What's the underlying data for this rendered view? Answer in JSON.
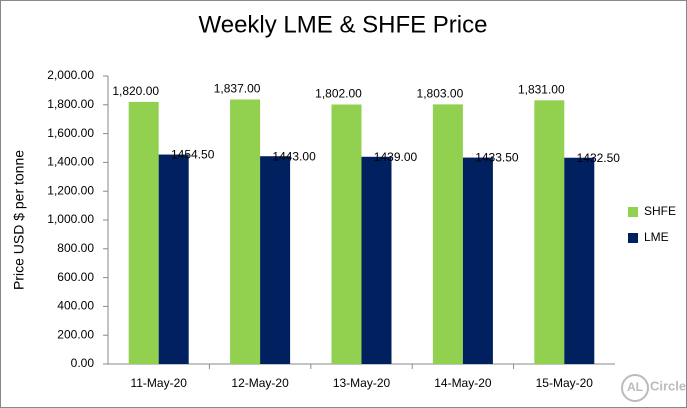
{
  "chart_data": {
    "type": "bar",
    "title": "Weekly LME & SHFE Price",
    "y_label": "Price  USD $  per  tonne",
    "categories": [
      "11-May-20",
      "12-May-20",
      "13-May-20",
      "14-May-20",
      "15-May-20"
    ],
    "series": [
      {
        "name": "SHFE",
        "color": "#92d050",
        "values": [
          1820,
          1837,
          1802,
          1803,
          1831
        ],
        "value_labels": [
          "1,820.00",
          "1,837.00",
          "1,802.00",
          "1,803.00",
          "1,831.00"
        ]
      },
      {
        "name": "LME",
        "color": "#002060",
        "values": [
          1454.5,
          1443,
          1439,
          1433.5,
          1432.5
        ],
        "value_labels": [
          "1454.50",
          "1443.00",
          "1439.00",
          "1433.50",
          "1432.50"
        ]
      }
    ],
    "ylim": [
      0,
      2000
    ],
    "yticks": [
      {
        "value": 0,
        "label": "0.00"
      },
      {
        "value": 200,
        "label": "200.00"
      },
      {
        "value": 400,
        "label": "400.00"
      },
      {
        "value": 600,
        "label": "600.00"
      },
      {
        "value": 800,
        "label": "800.00"
      },
      {
        "value": 1000,
        "label": "1,000.00"
      },
      {
        "value": 1200,
        "label": "1,200.00"
      },
      {
        "value": 1400,
        "label": "1,400.00"
      },
      {
        "value": 1600,
        "label": "1,600.00"
      },
      {
        "value": 1800,
        "label": "1,800.00"
      },
      {
        "value": 2000,
        "label": "2,000.00"
      }
    ],
    "grid": false,
    "legend": "right",
    "watermark": [
      "AL",
      "Circle"
    ]
  }
}
